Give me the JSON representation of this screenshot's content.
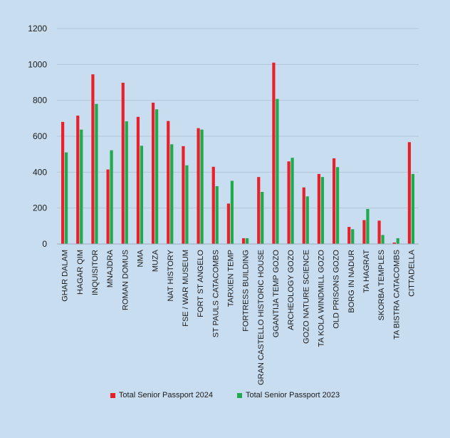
{
  "chart_data": {
    "type": "bar",
    "title": "",
    "xlabel": "",
    "ylabel": "",
    "ylim": [
      0,
      1200
    ],
    "yticks": [
      0,
      200,
      400,
      600,
      800,
      1000,
      1200
    ],
    "grid": true,
    "legend_position": "bottom",
    "categories": [
      "GHAR DALAM",
      "HAGAR QIM",
      "INQUISITOR",
      "MNAJDRA",
      "ROMAN DOMUS",
      "NMA",
      "MUZA",
      "NAT HISTORY",
      "FSE / WAR MUSEUM",
      "FORT ST ANGELO",
      "ST PAULS CATACOMBS",
      "TARXIEN TEMP",
      "FORTRESS BUILDING",
      "GRAN CASTELLO HISTORIC HOUSE",
      "GGANTIJA TEMP GOZO",
      "ARCHEOLOGY GOZO",
      "GOZO NATURE SCIENCE",
      "TA KOLA WINDMILL GOZO",
      "OLD PRISONS GOZO",
      "BORG IN NADUR",
      "TA HAGRAT",
      "SKORBA TEMPLES",
      "TA BISTRA CATACOMBS",
      "CITTADELLA"
    ],
    "series": [
      {
        "name": "Total Senior Passport 2024",
        "color": "#e8202a",
        "values": [
          680,
          715,
          945,
          415,
          898,
          708,
          787,
          685,
          545,
          645,
          430,
          225,
          32,
          373,
          1010,
          460,
          315,
          390,
          477,
          95,
          133,
          130,
          8,
          567
        ]
      },
      {
        "name": "Total Senior Passport  2023",
        "color": "#1faa4b",
        "values": [
          510,
          637,
          780,
          522,
          683,
          547,
          750,
          555,
          438,
          637,
          322,
          352,
          32,
          290,
          808,
          480,
          265,
          373,
          428,
          82,
          195,
          50,
          32,
          390
        ]
      }
    ]
  }
}
